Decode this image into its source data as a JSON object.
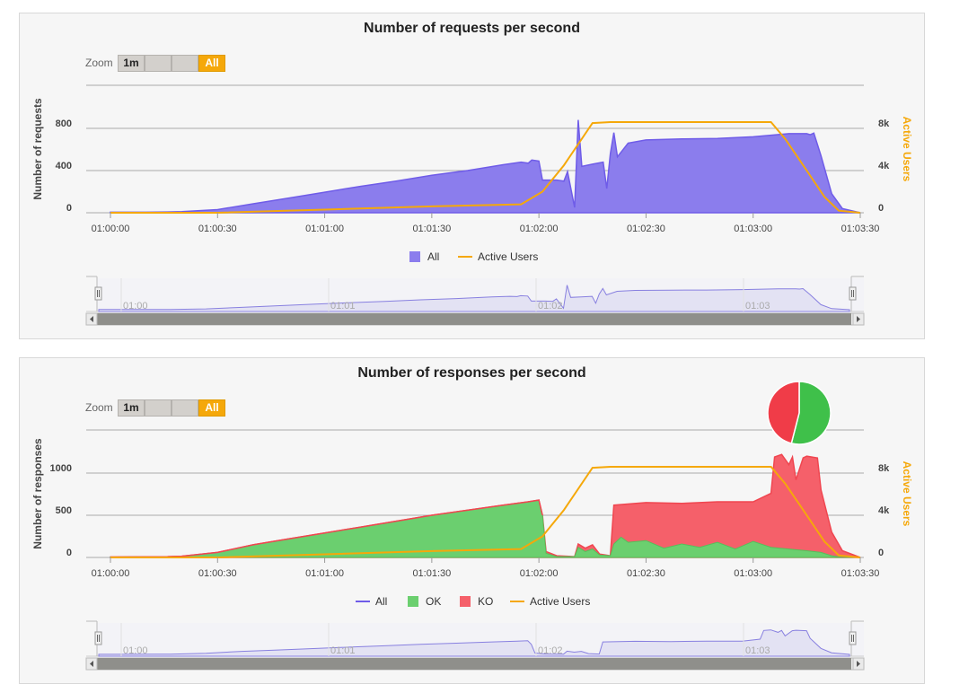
{
  "colors": {
    "all": "#6f5ce8",
    "all_fill": "#8b7ded",
    "ok": "#55c05a",
    "ok_fill": "#6bcf6f",
    "ko": "#f04650",
    "ko_fill": "#f5606a",
    "active_users": "#f5a80a",
    "navigator_line": "#8880e0"
  },
  "zoom": {
    "label": "Zoom",
    "buttons": [
      "1m",
      "",
      "",
      "All"
    ],
    "active": "All"
  },
  "x_ticks": [
    "01:00:00",
    "01:00:30",
    "01:01:00",
    "01:01:30",
    "01:02:00",
    "01:02:30",
    "01:03:00",
    "01:03:30"
  ],
  "navigator_ticks": [
    "01:00",
    "01:01",
    "01:02",
    "01:03"
  ],
  "active_users_ticks": [
    "0",
    "4k",
    "8k"
  ],
  "active_users_axis": "Active Users",
  "requests_chart": {
    "title": "Number of requests per second",
    "ylabel": "Number of requests",
    "y_ticks": [
      "0",
      "400",
      "800"
    ],
    "legend": [
      "All",
      "Active Users"
    ]
  },
  "responses_chart": {
    "title": "Number of responses per second",
    "ylabel": "Number of responses",
    "y_ticks": [
      "0",
      "500",
      "1000"
    ],
    "legend": [
      "All",
      "OK",
      "KO",
      "Active Users"
    ],
    "pie": {
      "ok_fraction": 0.54,
      "ko_fraction": 0.46
    }
  },
  "chart_data": [
    {
      "type": "area",
      "title": "Number of requests per second",
      "xlabel": "",
      "ylabel": "Number of requests",
      "y2label": "Active Users",
      "x_range_seconds": [
        0,
        210
      ],
      "ylim": [
        0,
        1200
      ],
      "y2lim": [
        0,
        12000
      ],
      "legend_position": "bottom",
      "series": [
        {
          "name": "All",
          "axis": "left",
          "points": [
            [
              0,
              5
            ],
            [
              10,
              5
            ],
            [
              16,
              8
            ],
            [
              20,
              10
            ],
            [
              30,
              30
            ],
            [
              40,
              85
            ],
            [
              50,
              140
            ],
            [
              60,
              195
            ],
            [
              70,
              250
            ],
            [
              80,
              300
            ],
            [
              90,
              355
            ],
            [
              100,
              400
            ],
            [
              110,
              455
            ],
            [
              115,
              480
            ],
            [
              117,
              470
            ],
            [
              118,
              500
            ],
            [
              120,
              490
            ],
            [
              121,
              310
            ],
            [
              125,
              310
            ],
            [
              127,
              300
            ],
            [
              128,
              390
            ],
            [
              130,
              50
            ],
            [
              131,
              880
            ],
            [
              132,
              440
            ],
            [
              135,
              460
            ],
            [
              138,
              480
            ],
            [
              139,
              230
            ],
            [
              140,
              560
            ],
            [
              141,
              760
            ],
            [
              142,
              530
            ],
            [
              145,
              660
            ],
            [
              150,
              690
            ],
            [
              160,
              700
            ],
            [
              170,
              705
            ],
            [
              180,
              720
            ],
            [
              190,
              750
            ],
            [
              195,
              750
            ],
            [
              196,
              740
            ],
            [
              197,
              755
            ],
            [
              199,
              540
            ],
            [
              202,
              180
            ],
            [
              205,
              40
            ],
            [
              210,
              0
            ]
          ]
        },
        {
          "name": "Active Users",
          "axis": "right",
          "points": [
            [
              0,
              0
            ],
            [
              10,
              0
            ],
            [
              30,
              0
            ],
            [
              60,
              300
            ],
            [
              90,
              600
            ],
            [
              115,
              800
            ],
            [
              121,
              2000
            ],
            [
              127,
              4500
            ],
            [
              135,
              8500
            ],
            [
              140,
              8600
            ],
            [
              175,
              8600
            ],
            [
              185,
              8600
            ],
            [
              189,
              7000
            ],
            [
              195,
              4000
            ],
            [
              200,
              1500
            ],
            [
              204,
              200
            ],
            [
              210,
              0
            ]
          ]
        }
      ]
    },
    {
      "type": "area",
      "title": "Number of responses per second",
      "xlabel": "",
      "ylabel": "Number of responses",
      "y2label": "Active Users",
      "x_range_seconds": [
        0,
        210
      ],
      "ylim": [
        0,
        1500
      ],
      "y2lim": [
        0,
        12000
      ],
      "legend_position": "bottom",
      "series": [
        {
          "name": "All",
          "axis": "left",
          "points": [
            [
              0,
              5
            ],
            [
              16,
              10
            ],
            [
              20,
              15
            ],
            [
              30,
              60
            ],
            [
              40,
              150
            ],
            [
              50,
              220
            ],
            [
              60,
              290
            ],
            [
              70,
              360
            ],
            [
              80,
              430
            ],
            [
              90,
              500
            ],
            [
              100,
              560
            ],
            [
              110,
              620
            ],
            [
              117,
              660
            ],
            [
              120,
              680
            ],
            [
              121,
              500
            ],
            [
              122,
              70
            ],
            [
              125,
              20
            ],
            [
              130,
              10
            ],
            [
              131,
              160
            ],
            [
              133,
              110
            ],
            [
              135,
              150
            ],
            [
              137,
              40
            ],
            [
              140,
              20
            ],
            [
              141,
              620
            ],
            [
              150,
              650
            ],
            [
              160,
              640
            ],
            [
              170,
              660
            ],
            [
              180,
              660
            ],
            [
              185,
              760
            ],
            [
              186,
              1190
            ],
            [
              188,
              1220
            ],
            [
              190,
              1100
            ],
            [
              191,
              1190
            ],
            [
              192,
              920
            ],
            [
              194,
              1180
            ],
            [
              195,
              1200
            ],
            [
              198,
              1180
            ],
            [
              199,
              800
            ],
            [
              202,
              300
            ],
            [
              205,
              80
            ],
            [
              210,
              0
            ]
          ]
        },
        {
          "name": "OK",
          "axis": "left",
          "points": [
            [
              0,
              5
            ],
            [
              16,
              10
            ],
            [
              20,
              15
            ],
            [
              30,
              60
            ],
            [
              40,
              150
            ],
            [
              50,
              220
            ],
            [
              60,
              290
            ],
            [
              70,
              360
            ],
            [
              80,
              430
            ],
            [
              90,
              500
            ],
            [
              100,
              560
            ],
            [
              110,
              620
            ],
            [
              117,
              660
            ],
            [
              120,
              680
            ],
            [
              121,
              500
            ],
            [
              122,
              50
            ],
            [
              125,
              10
            ],
            [
              130,
              10
            ],
            [
              131,
              120
            ],
            [
              133,
              70
            ],
            [
              135,
              100
            ],
            [
              137,
              30
            ],
            [
              140,
              20
            ],
            [
              141,
              160
            ],
            [
              143,
              240
            ],
            [
              145,
              180
            ],
            [
              150,
              200
            ],
            [
              155,
              110
            ],
            [
              160,
              160
            ],
            [
              165,
              120
            ],
            [
              170,
              180
            ],
            [
              175,
              100
            ],
            [
              180,
              190
            ],
            [
              185,
              120
            ],
            [
              190,
              100
            ],
            [
              195,
              80
            ],
            [
              199,
              60
            ],
            [
              202,
              20
            ],
            [
              205,
              0
            ],
            [
              210,
              0
            ]
          ]
        },
        {
          "name": "KO",
          "axis": "left",
          "points": [
            [
              0,
              0
            ],
            [
              121,
              0
            ],
            [
              122,
              20
            ],
            [
              125,
              10
            ],
            [
              130,
              0
            ],
            [
              131,
              40
            ],
            [
              133,
              40
            ],
            [
              135,
              50
            ],
            [
              137,
              10
            ],
            [
              140,
              0
            ],
            [
              141,
              460
            ],
            [
              143,
              380
            ],
            [
              145,
              460
            ],
            [
              150,
              450
            ],
            [
              155,
              530
            ],
            [
              160,
              480
            ],
            [
              165,
              520
            ],
            [
              170,
              480
            ],
            [
              175,
              560
            ],
            [
              180,
              470
            ],
            [
              185,
              640
            ],
            [
              186,
              1070
            ],
            [
              188,
              1120
            ],
            [
              190,
              1000
            ],
            [
              191,
              1090
            ],
            [
              192,
              820
            ],
            [
              194,
              1100
            ],
            [
              195,
              1120
            ],
            [
              198,
              1120
            ],
            [
              199,
              740
            ],
            [
              202,
              280
            ],
            [
              205,
              80
            ],
            [
              210,
              0
            ]
          ]
        },
        {
          "name": "Active Users",
          "axis": "right",
          "points": [
            [
              0,
              0
            ],
            [
              10,
              0
            ],
            [
              30,
              0
            ],
            [
              60,
              300
            ],
            [
              90,
              600
            ],
            [
              115,
              800
            ],
            [
              121,
              2000
            ],
            [
              127,
              4500
            ],
            [
              135,
              8500
            ],
            [
              140,
              8600
            ],
            [
              175,
              8600
            ],
            [
              185,
              8600
            ],
            [
              189,
              7000
            ],
            [
              195,
              4000
            ],
            [
              200,
              1500
            ],
            [
              204,
              200
            ],
            [
              210,
              0
            ]
          ]
        }
      ]
    }
  ]
}
